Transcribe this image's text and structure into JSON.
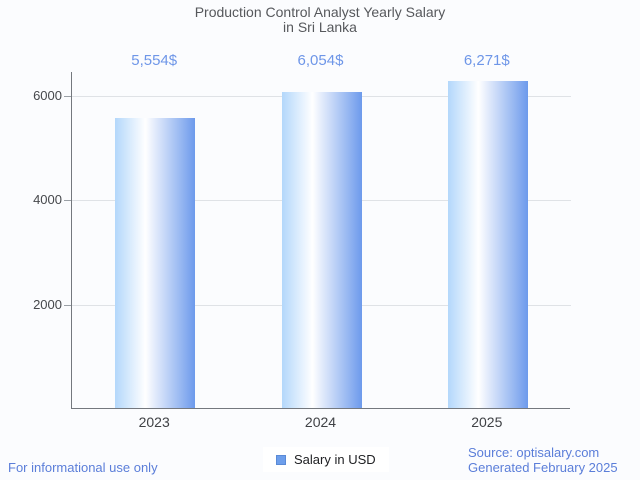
{
  "title": {
    "line1": "Production Control Analyst Yearly Salary",
    "line2": "in Sri Lanka"
  },
  "chart_data": {
    "type": "bar",
    "categories": [
      "2023",
      "2024",
      "2025"
    ],
    "values": [
      5554,
      6054,
      6271
    ],
    "value_labels": [
      "5,554$",
      "6,054$",
      "6,271$"
    ],
    "series_name": "Salary in USD",
    "title": "Production Control Analyst Yearly Salary in Sri Lanka",
    "xlabel": "",
    "ylabel": "",
    "ylim": [
      0,
      6460
    ],
    "yticks": [
      2000,
      4000,
      6000
    ],
    "grid": true,
    "legend_position": "bottom",
    "bar_color": "#6d9eeb",
    "bar_gradient_left": "#b3d7fb",
    "bar_gradient_mid": "#ffffff",
    "bar_gradient_right": "#6d9aec",
    "value_label_color": "#6e96e8",
    "gridline_color": "#dfe2e6",
    "axis_color": "#74787e"
  },
  "legend": {
    "label": "Salary in USD",
    "swatch_color": "#6d9eeb"
  },
  "footer": {
    "disclaimer": "For informational use only",
    "source": "Source: optisalary.com",
    "generated": "Generated February 2025"
  }
}
